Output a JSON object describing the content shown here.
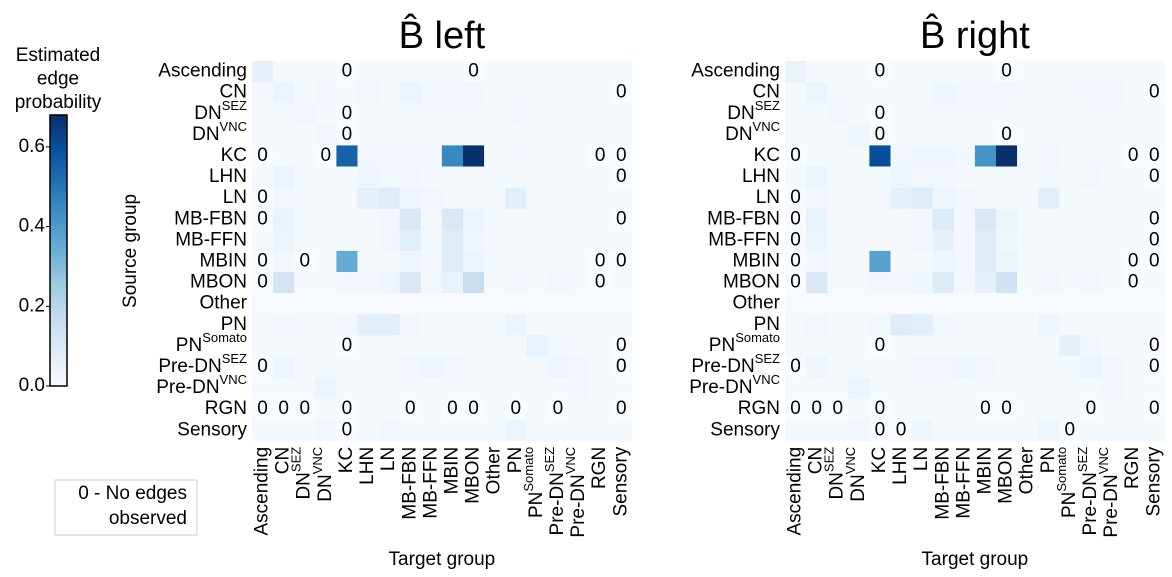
{
  "chart_data": [
    {
      "type": "heatmap",
      "title": "B̂ left",
      "title_color": "#66c2a5",
      "x_label": "Target group",
      "y_label": "Source group",
      "categories": [
        "Ascending",
        "CN",
        {
          "text": "DN",
          "sup": "SEZ"
        },
        {
          "text": "DN",
          "sup": "VNC"
        },
        "KC",
        "LHN",
        "LN",
        "MB-FBN",
        "MB-FFN",
        "MBIN",
        "MBON",
        "Other",
        "PN",
        {
          "text": "PN",
          "sup": "Somato"
        },
        {
          "text": "Pre-DN",
          "sup": "SEZ"
        },
        {
          "text": "Pre-DN",
          "sup": "VNC"
        },
        "RGN",
        "Sensory"
      ],
      "values": [
        [
          0.06,
          0.01,
          0.01,
          0.01,
          0,
          0.01,
          0.01,
          0.01,
          0.01,
          0.01,
          0,
          0.01,
          0.01,
          0.01,
          0.01,
          0.01,
          0.01,
          0.01
        ],
        [
          0.01,
          0.04,
          0.01,
          0.02,
          0.01,
          0.02,
          0.01,
          0.04,
          0.02,
          0.02,
          0.02,
          0.01,
          0.01,
          0.01,
          0.01,
          0.01,
          0.01,
          0
        ],
        [
          0.01,
          0.01,
          0.02,
          0.01,
          0,
          0.01,
          0.01,
          0.01,
          0.01,
          0.01,
          0.01,
          0.01,
          0.02,
          0.01,
          0.01,
          0.01,
          0.01,
          0.01
        ],
        [
          0.01,
          0.01,
          0.01,
          0.02,
          0,
          0.01,
          0.01,
          0.01,
          0.01,
          0.01,
          0.01,
          0.01,
          0.01,
          0.01,
          0.01,
          0.01,
          0.01,
          0.01
        ],
        [
          0,
          0.01,
          0.01,
          0,
          0.55,
          0.02,
          0.02,
          0.02,
          0.02,
          0.45,
          0.68,
          0.01,
          0.02,
          0.01,
          0.01,
          0.01,
          0,
          0
        ],
        [
          0.01,
          0.04,
          0.01,
          0.01,
          0.01,
          0.03,
          0.02,
          0.02,
          0.01,
          0.01,
          0.01,
          0.01,
          0.01,
          0.01,
          0.01,
          0.01,
          0.01,
          0
        ],
        [
          0,
          0.02,
          0.01,
          0.01,
          0.01,
          0.06,
          0.08,
          0.03,
          0.02,
          0.01,
          0.01,
          0.01,
          0.07,
          0.01,
          0.01,
          0.01,
          0.01,
          0.01
        ],
        [
          0,
          0.05,
          0.01,
          0.01,
          0.01,
          0.01,
          0.02,
          0.1,
          0.02,
          0.1,
          0.04,
          0.01,
          0.01,
          0.01,
          0.01,
          0.01,
          0.01,
          0
        ],
        [
          0.01,
          0.04,
          0.01,
          0.01,
          0.01,
          0.01,
          0.02,
          0.07,
          0.02,
          0.08,
          0.03,
          0.01,
          0.01,
          0.01,
          0.01,
          0.01,
          0.01,
          0.01
        ],
        [
          0,
          0.02,
          0,
          0.01,
          0.35,
          0.01,
          0.01,
          0.03,
          0.02,
          0.08,
          0.04,
          0.01,
          0.01,
          0.01,
          0.01,
          0.01,
          0,
          0
        ],
        [
          0,
          0.12,
          0.01,
          0.01,
          0.02,
          0.02,
          0.03,
          0.1,
          0.02,
          0.05,
          0.16,
          0.01,
          0.02,
          0.01,
          0.02,
          0.01,
          0,
          0.01
        ],
        [
          0.005,
          0.005,
          0.005,
          0.005,
          0.005,
          0.005,
          0.005,
          0.005,
          0.005,
          0.005,
          0.005,
          0.005,
          0.005,
          0.005,
          0.005,
          0.005,
          0.005,
          0.005
        ],
        [
          0.01,
          0.02,
          0.01,
          0.01,
          0.02,
          0.07,
          0.07,
          0.02,
          0.01,
          0.01,
          0.01,
          0.01,
          0.04,
          0.01,
          0.01,
          0.01,
          0.01,
          0.01
        ],
        [
          0.01,
          0.01,
          0.01,
          0.01,
          0,
          0.01,
          0.01,
          0.01,
          0.01,
          0.01,
          0.01,
          0.01,
          0.01,
          0.05,
          0.02,
          0.01,
          0.01,
          0
        ],
        [
          0,
          0.03,
          0.01,
          0.01,
          0.01,
          0.01,
          0.01,
          0.02,
          0.03,
          0.02,
          0.01,
          0.01,
          0.01,
          0.01,
          0.03,
          0.02,
          0.01,
          0
        ],
        [
          0.01,
          0.01,
          0.01,
          0.04,
          0.01,
          0.01,
          0.01,
          0.01,
          0.01,
          0.01,
          0.01,
          0.01,
          0.01,
          0.01,
          0.01,
          0.02,
          0.01,
          0.01
        ],
        [
          0,
          0,
          0,
          0.01,
          0,
          0.01,
          0.01,
          0,
          0.01,
          0,
          0,
          0.01,
          0,
          0.01,
          0,
          0.01,
          0.01,
          0
        ],
        [
          0.01,
          0.01,
          0.01,
          0.02,
          0,
          0.01,
          0.02,
          0.01,
          0.01,
          0.01,
          0.01,
          0.01,
          0.04,
          0.01,
          0.01,
          0.01,
          0.01,
          0.01
        ]
      ]
    },
    {
      "type": "heatmap",
      "title": "B̂ right",
      "title_color": "#fc8d62",
      "x_label": "Target group",
      "categories": [
        "Ascending",
        "CN",
        {
          "text": "DN",
          "sup": "SEZ"
        },
        {
          "text": "DN",
          "sup": "VNC"
        },
        "KC",
        "LHN",
        "LN",
        "MB-FBN",
        "MB-FFN",
        "MBIN",
        "MBON",
        "Other",
        "PN",
        {
          "text": "PN",
          "sup": "Somato"
        },
        {
          "text": "Pre-DN",
          "sup": "SEZ"
        },
        {
          "text": "Pre-DN",
          "sup": "VNC"
        },
        "RGN",
        "Sensory"
      ],
      "values": [
        [
          0.05,
          0.01,
          0.01,
          0.01,
          0,
          0.01,
          0.01,
          0.01,
          0.01,
          0.01,
          0,
          0.01,
          0.01,
          0.01,
          0.01,
          0.01,
          0.01,
          0.01
        ],
        [
          0.01,
          0.04,
          0.01,
          0.01,
          0.01,
          0.01,
          0.01,
          0.03,
          0.02,
          0.02,
          0.02,
          0.01,
          0.01,
          0.01,
          0.02,
          0.02,
          0.01,
          0
        ],
        [
          0.01,
          0.01,
          0.02,
          0.01,
          0,
          0.01,
          0.01,
          0.01,
          0.01,
          0.01,
          0.01,
          0.01,
          0.01,
          0.01,
          0.01,
          0.01,
          0.01,
          0.01
        ],
        [
          0.01,
          0.01,
          0.01,
          0.03,
          0,
          0.01,
          0.01,
          0.01,
          0.01,
          0.01,
          0,
          0.01,
          0.01,
          0.01,
          0.01,
          0.01,
          0.01,
          0.01
        ],
        [
          0,
          0.01,
          0.01,
          0.01,
          0.6,
          0.02,
          0.03,
          0.03,
          0.02,
          0.42,
          0.68,
          0.01,
          0.02,
          0.01,
          0.01,
          0.01,
          0,
          0
        ],
        [
          0.01,
          0.04,
          0.01,
          0.01,
          0.01,
          0.03,
          0.02,
          0.02,
          0.01,
          0.01,
          0.01,
          0.01,
          0.01,
          0.01,
          0.02,
          0.01,
          0.01,
          0
        ],
        [
          0,
          0.02,
          0.01,
          0.01,
          0.01,
          0.06,
          0.08,
          0.03,
          0.02,
          0.01,
          0.01,
          0.01,
          0.07,
          0.01,
          0.01,
          0.01,
          0.01,
          0.01
        ],
        [
          0,
          0.05,
          0.01,
          0.01,
          0.01,
          0.01,
          0.02,
          0.09,
          0.02,
          0.1,
          0.04,
          0.01,
          0.01,
          0.01,
          0.01,
          0.01,
          0.01,
          0
        ],
        [
          0,
          0.04,
          0.01,
          0.01,
          0.01,
          0.01,
          0.02,
          0.06,
          0.02,
          0.08,
          0.03,
          0.01,
          0.01,
          0.01,
          0.01,
          0.01,
          0.01,
          0
        ],
        [
          0,
          0.02,
          0.01,
          0.01,
          0.38,
          0.01,
          0.01,
          0.03,
          0.02,
          0.08,
          0.04,
          0.01,
          0.01,
          0.01,
          0.01,
          0.01,
          0,
          0
        ],
        [
          0,
          0.1,
          0.01,
          0.01,
          0.02,
          0.02,
          0.03,
          0.09,
          0.02,
          0.06,
          0.13,
          0.01,
          0.02,
          0.01,
          0.02,
          0.01,
          0,
          0.01
        ],
        [
          0.005,
          0.005,
          0.005,
          0.005,
          0.005,
          0.005,
          0.005,
          0.005,
          0.005,
          0.005,
          0.005,
          0.005,
          0.005,
          0.005,
          0.005,
          0.005,
          0.005,
          0.005
        ],
        [
          0.01,
          0.02,
          0.01,
          0.01,
          0.02,
          0.08,
          0.07,
          0.02,
          0.01,
          0.01,
          0.01,
          0.01,
          0.03,
          0.01,
          0.01,
          0.01,
          0.01,
          0.01
        ],
        [
          0.01,
          0.01,
          0.01,
          0.01,
          0,
          0.01,
          0.01,
          0.01,
          0.01,
          0.01,
          0.01,
          0.01,
          0.01,
          0.06,
          0.02,
          0.01,
          0.01,
          0
        ],
        [
          0,
          0.03,
          0.01,
          0.01,
          0.01,
          0.01,
          0.02,
          0.02,
          0.03,
          0.02,
          0.01,
          0.01,
          0.01,
          0.01,
          0.04,
          0.02,
          0.01,
          0
        ],
        [
          0.01,
          0.01,
          0.01,
          0.04,
          0.01,
          0.01,
          0.01,
          0.01,
          0.01,
          0.01,
          0.01,
          0.01,
          0.01,
          0.01,
          0.01,
          0.02,
          0.01,
          0.01
        ],
        [
          0,
          0,
          0,
          0.01,
          0,
          0.01,
          0.01,
          0.01,
          0.01,
          0,
          0,
          0.01,
          0.01,
          0.01,
          0,
          0.01,
          0.01,
          0
        ],
        [
          0.01,
          0.01,
          0.01,
          0.02,
          0,
          0,
          0.03,
          0.01,
          0.01,
          0.01,
          0.01,
          0.01,
          0.03,
          0,
          0.01,
          0.01,
          0.01,
          0.01
        ]
      ]
    }
  ],
  "colorbar": {
    "title": [
      "Estimated",
      "edge",
      "probability"
    ],
    "ylim": [
      0,
      0.68
    ],
    "yticks": [
      {
        "value": 0,
        "label": "0.0"
      },
      0.2,
      0.4,
      0.6
    ],
    "colors": [
      "#f7fbff",
      "#deebf7",
      "#c6dbef",
      "#9ecae1",
      "#6baed6",
      "#4292c6",
      "#2171b5",
      "#08519c",
      "#08306b"
    ]
  },
  "note": [
    "0 - No edges",
    "observed"
  ]
}
